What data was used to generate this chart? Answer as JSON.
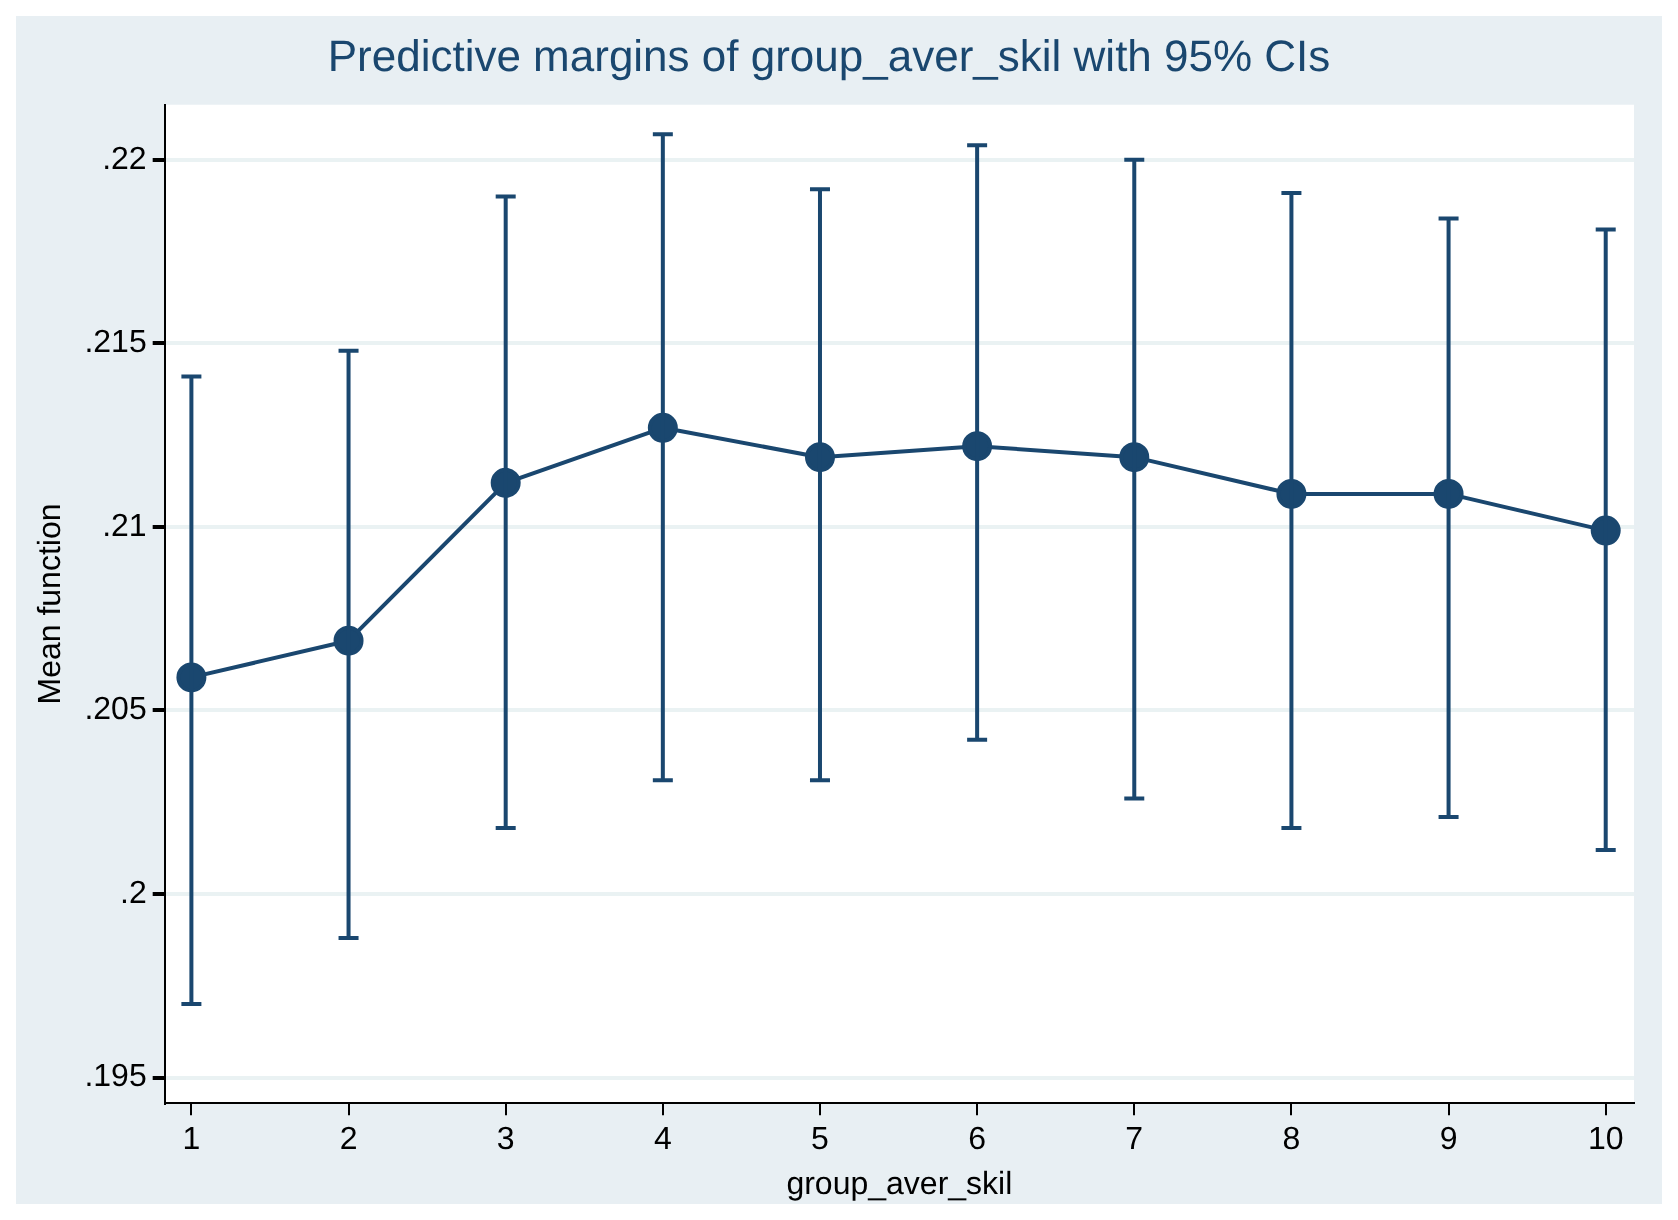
{
  "chart_data": {
    "type": "line",
    "title": "Predictive margins of group_aver_skil with 95% CIs",
    "xlabel": "group_aver_skil",
    "ylabel": "Mean function",
    "x": [
      1,
      2,
      3,
      4,
      5,
      6,
      7,
      8,
      9,
      10
    ],
    "series": [
      {
        "color": "#1a476f",
        "values": [
          0.2059,
          0.2069,
          0.2112,
          0.2127,
          0.2119,
          0.2122,
          0.2119,
          0.2109,
          0.2109,
          0.2099
        ],
        "errors": [
          [
            0.197,
            0.2141
          ],
          [
            0.1988,
            0.2148
          ],
          [
            0.2018,
            0.219
          ],
          [
            0.2031,
            0.2207
          ],
          [
            0.2031,
            0.2192
          ],
          [
            0.2042,
            0.2204
          ],
          [
            0.2026,
            0.22
          ],
          [
            0.2018,
            0.2191
          ],
          [
            0.2021,
            0.2184
          ],
          [
            0.2012,
            0.2181
          ]
        ]
      }
    ],
    "xlim": [
      0.83,
      10.18
    ],
    "xticks": [
      1,
      2,
      3,
      4,
      5,
      6,
      7,
      8,
      9,
      10
    ],
    "ylim": [
      0.1943,
      0.2215
    ],
    "yticks": [
      {
        "value": 0.195,
        "label": ".195"
      },
      {
        "value": 0.2,
        "label": ".2"
      },
      {
        "value": 0.205,
        "label": ".205"
      },
      {
        "value": 0.21,
        "label": ".21"
      },
      {
        "value": 0.215,
        "label": ".215"
      },
      {
        "value": 0.22,
        "label": ".22"
      }
    ],
    "grid": "y",
    "marker": "circle",
    "line_style": "solid",
    "legend": false
  }
}
